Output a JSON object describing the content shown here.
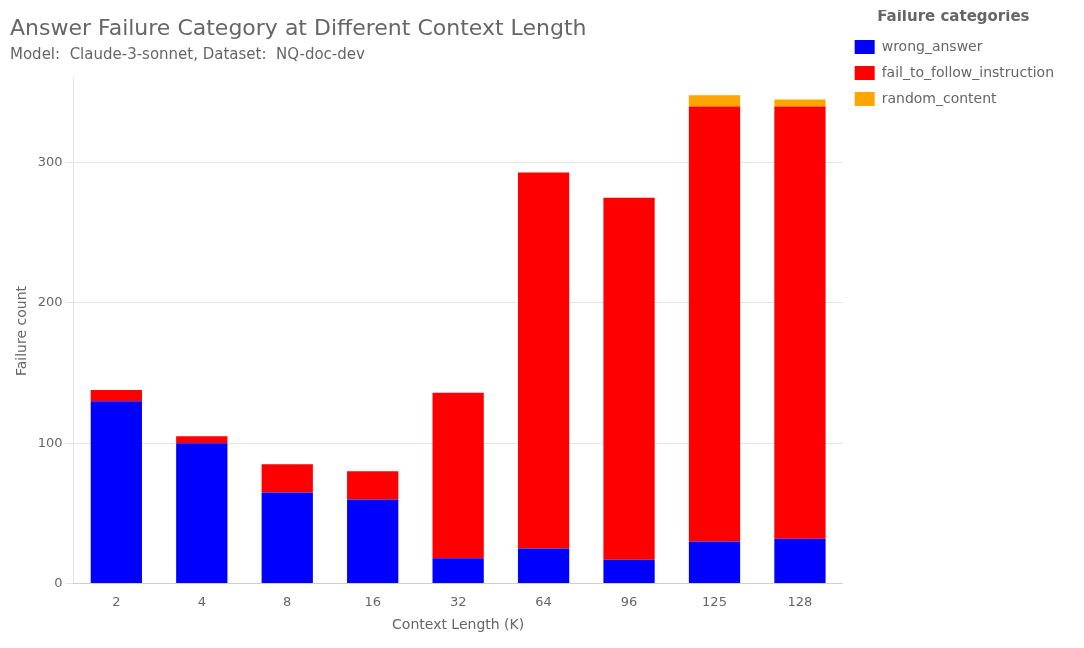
{
  "chart_data": {
    "type": "bar",
    "title": "Answer Failure Category at Different Context Length",
    "subtitle": "Model:  Claude-3-sonnet, Dataset:  NQ-doc-dev",
    "xlabel": "Context Length (K)",
    "ylabel": "Failure count",
    "legend_title": "Failure categories",
    "categories": [
      "2",
      "4",
      "8",
      "16",
      "32",
      "64",
      "96",
      "125",
      "128"
    ],
    "series": [
      {
        "name": "wrong_answer",
        "color": "#0000FF",
        "values": [
          130,
          100,
          65,
          60,
          18,
          25,
          17,
          30,
          32
        ]
      },
      {
        "name": "fail_to_follow_instruction",
        "color": "#FF0000",
        "values": [
          8,
          5,
          20,
          20,
          118,
          268,
          258,
          310,
          308
        ]
      },
      {
        "name": "random_content",
        "color": "#FFA500",
        "values": [
          0,
          0,
          0,
          0,
          0,
          0,
          0,
          8,
          5
        ]
      }
    ],
    "stacked": true,
    "ylim": [
      0,
      360
    ],
    "yticks": [
      0,
      100,
      200,
      300
    ],
    "grid": true,
    "legend": "right"
  }
}
